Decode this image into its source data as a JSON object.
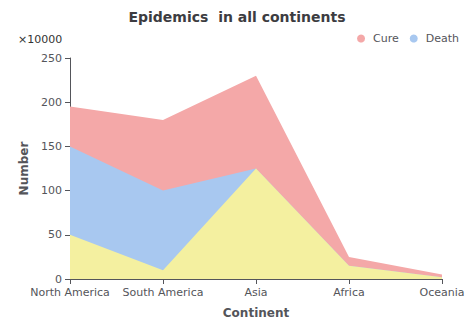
{
  "chart_data": {
    "type": "area",
    "title": "Epidemics  in all continents",
    "xlabel": "Continent",
    "ylabel": "Number",
    "annotations": [
      "×10000"
    ],
    "categories": [
      "North America",
      "South America",
      "Asia",
      "Africa",
      "Oceania"
    ],
    "series": [
      {
        "name": "Cure",
        "color": "#F4A8A8",
        "values": [
          195,
          180,
          230,
          25,
          5
        ]
      },
      {
        "name": "Death",
        "color": "#A8C8F0",
        "values": [
          150,
          100,
          125,
          15,
          2
        ]
      },
      {
        "color": "#F4F0A0",
        "values": [
          50,
          10,
          125,
          15,
          2
        ]
      }
    ],
    "ylim": [
      0,
      250
    ],
    "yticks": [
      0,
      50,
      100,
      150,
      200,
      250
    ],
    "stacked": false,
    "grid": false,
    "legend": "upper right"
  }
}
